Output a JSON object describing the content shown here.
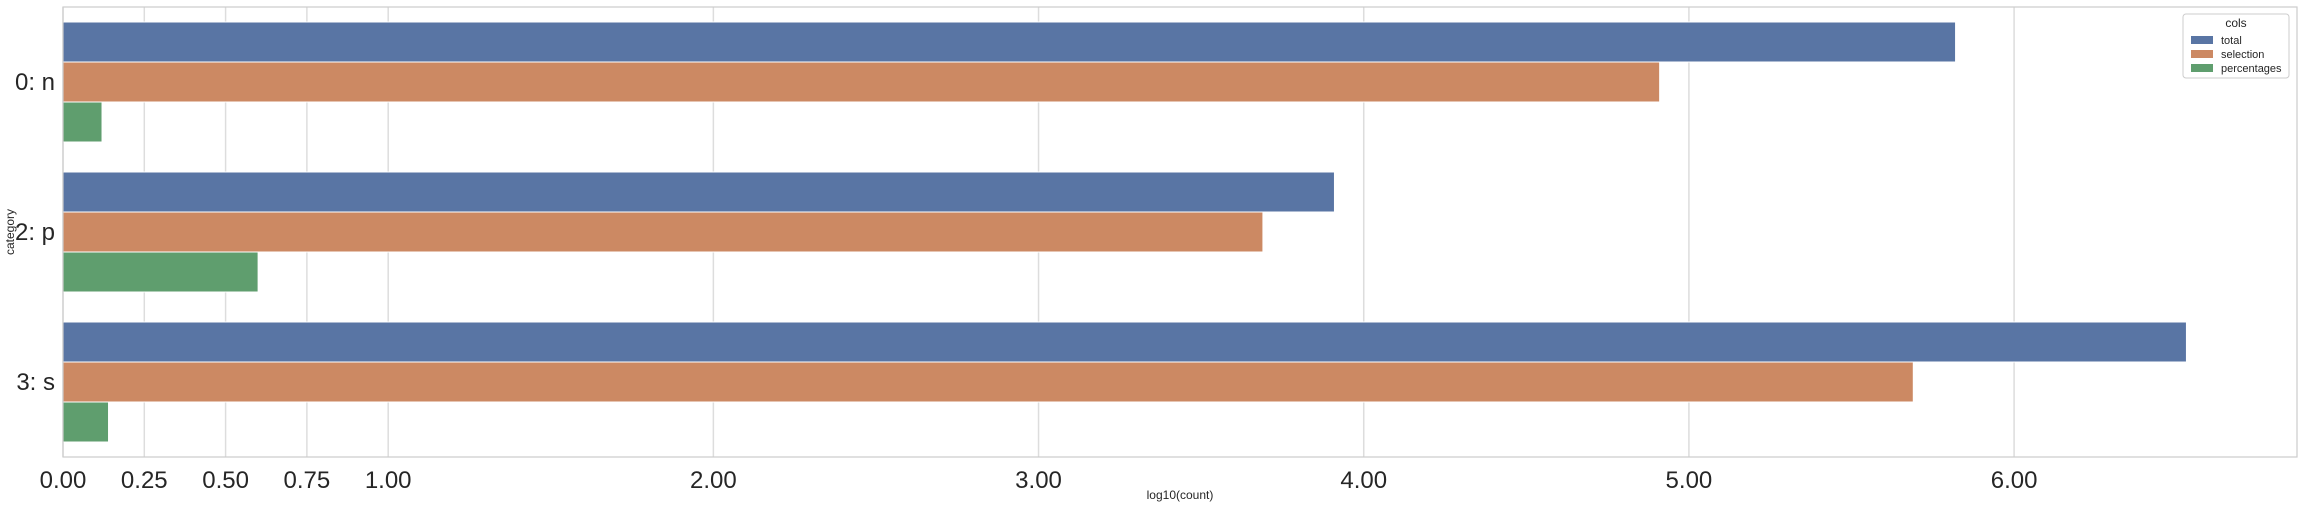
{
  "chart_data": {
    "type": "bar",
    "orientation": "horizontal",
    "title": "",
    "xlabel": "log10(count)",
    "ylabel": "category",
    "categories": [
      "0: n",
      "2: p",
      "3: s"
    ],
    "series": [
      {
        "name": "total",
        "color": "#5975a4",
        "values": [
          5.82,
          3.91,
          6.53
        ]
      },
      {
        "name": "selection",
        "color": "#cc8963",
        "values": [
          4.91,
          3.69,
          5.69
        ]
      },
      {
        "name": "percentages",
        "color": "#5f9e6e",
        "values": [
          0.12,
          0.6,
          0.14
        ]
      }
    ],
    "xlim": [
      0,
      6.87
    ],
    "xticks": [
      0,
      0.25,
      0.5,
      0.75,
      1,
      2,
      3,
      4,
      5,
      6
    ],
    "xtick_labels": [
      "0.00",
      "0.25",
      "0.50",
      "0.75",
      "1.00",
      "2.00",
      "3.00",
      "4.00",
      "5.00",
      "6.00"
    ],
    "grid": true,
    "legend": {
      "title": "cols",
      "position": "top-right",
      "entries": [
        "total",
        "selection",
        "percentages"
      ]
    }
  }
}
